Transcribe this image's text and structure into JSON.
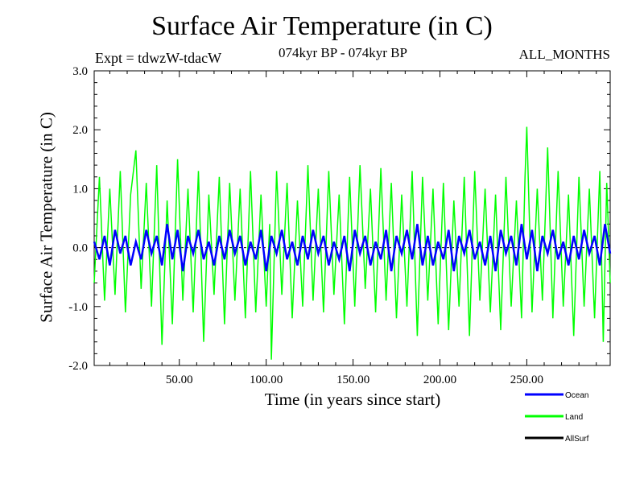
{
  "title": "Surface Air Temperature (in C)",
  "experiment": "Expt = tdwzW-tdacW",
  "period": "074kyr BP - 074kyr BP",
  "months": "ALL_MONTHS",
  "chart_data": {
    "type": "line",
    "xlabel": "Time (in years since start)",
    "ylabel": "Surface Air Temperature (in C)",
    "xlim": [
      1,
      298
    ],
    "ylim": [
      -2.0,
      3.0
    ],
    "x_ticks": [
      50,
      100,
      150,
      200,
      250
    ],
    "x_tick_labels": [
      "50.00",
      "100.00",
      "150.00",
      "200.00",
      "250.00"
    ],
    "y_ticks": [
      -2.0,
      -1.0,
      0.0,
      1.0,
      2.0,
      3.0
    ],
    "y_tick_labels": [
      "-2.0",
      "-1.0",
      "0.0",
      "1.0",
      "2.0",
      "3.0"
    ],
    "zero_line": true,
    "series": [
      {
        "name": "Land",
        "color": "#00ff00",
        "x": [
          1,
          4,
          7,
          10,
          13,
          16,
          19,
          22,
          25,
          28,
          31,
          34,
          37,
          40,
          43,
          46,
          49,
          52,
          55,
          58,
          61,
          64,
          67,
          70,
          73,
          76,
          79,
          82,
          85,
          88,
          91,
          94,
          97,
          100,
          102,
          103,
          106,
          109,
          112,
          115,
          118,
          121,
          124,
          127,
          130,
          133,
          136,
          139,
          142,
          145,
          148,
          151,
          154,
          157,
          160,
          163,
          166,
          169,
          172,
          175,
          178,
          181,
          184,
          187,
          190,
          193,
          196,
          199,
          202,
          205,
          208,
          211,
          214,
          217,
          220,
          223,
          226,
          229,
          232,
          235,
          238,
          241,
          244,
          247,
          249,
          250,
          253,
          256,
          259,
          262,
          265,
          268,
          271,
          274,
          277,
          280,
          283,
          286,
          289,
          292,
          294,
          296,
          298
        ],
        "values": [
          -0.6,
          1.2,
          -0.9,
          1.0,
          -0.8,
          1.3,
          -1.1,
          0.9,
          1.65,
          -0.7,
          1.1,
          -1.0,
          1.4,
          -1.65,
          0.8,
          -1.3,
          1.5,
          -0.9,
          1.0,
          -1.1,
          1.3,
          -1.6,
          0.9,
          -0.8,
          1.2,
          -1.3,
          1.1,
          -0.9,
          1.0,
          -1.2,
          1.3,
          -1.1,
          0.9,
          -1.0,
          0.4,
          -1.9,
          1.3,
          -0.8,
          1.1,
          -1.2,
          0.8,
          -1.0,
          1.4,
          -0.9,
          1.0,
          -1.1,
          1.3,
          -0.8,
          0.9,
          -1.3,
          1.2,
          -1.0,
          1.4,
          -0.7,
          1.0,
          -1.1,
          1.35,
          -0.9,
          1.1,
          -1.2,
          0.9,
          -1.0,
          1.3,
          -1.5,
          1.2,
          -0.9,
          1.0,
          -1.3,
          1.1,
          -1.4,
          0.8,
          -1.0,
          1.2,
          -1.5,
          1.3,
          -0.9,
          1.0,
          -1.1,
          0.9,
          -1.4,
          1.2,
          -1.0,
          0.8,
          -1.2,
          1.2,
          2.05,
          -1.1,
          1.0,
          -0.9,
          1.7,
          -1.2,
          1.3,
          -1.0,
          0.9,
          -1.5,
          1.2,
          -1.0,
          1.0,
          -1.2,
          1.3,
          -1.6,
          1.1,
          -0.6
        ]
      },
      {
        "name": "Ocean",
        "color": "#0000ff",
        "x": [
          1,
          4,
          7,
          10,
          13,
          16,
          19,
          22,
          25,
          28,
          31,
          34,
          37,
          40,
          43,
          46,
          49,
          52,
          55,
          58,
          61,
          64,
          67,
          70,
          73,
          76,
          79,
          82,
          85,
          88,
          91,
          94,
          97,
          100,
          103,
          106,
          109,
          112,
          115,
          118,
          121,
          124,
          127,
          130,
          133,
          136,
          139,
          142,
          145,
          148,
          151,
          154,
          157,
          160,
          163,
          166,
          169,
          172,
          175,
          178,
          181,
          184,
          187,
          190,
          193,
          196,
          199,
          202,
          205,
          208,
          211,
          214,
          217,
          220,
          223,
          226,
          229,
          232,
          235,
          238,
          241,
          244,
          247,
          250,
          253,
          256,
          259,
          262,
          265,
          268,
          271,
          274,
          277,
          280,
          283,
          286,
          289,
          292,
          295,
          298
        ],
        "values": [
          0.1,
          -0.2,
          0.2,
          -0.3,
          0.3,
          -0.1,
          0.2,
          -0.3,
          0.1,
          -0.2,
          0.3,
          -0.1,
          0.2,
          -0.3,
          0.4,
          -0.2,
          0.3,
          -0.4,
          0.2,
          -0.1,
          0.3,
          -0.2,
          0.1,
          -0.3,
          0.2,
          -0.2,
          0.3,
          -0.1,
          0.2,
          -0.3,
          0.1,
          -0.2,
          0.3,
          -0.4,
          0.2,
          -0.1,
          0.3,
          -0.2,
          0.1,
          -0.3,
          0.2,
          -0.2,
          0.3,
          -0.1,
          0.2,
          -0.3,
          0.1,
          -0.2,
          0.2,
          -0.4,
          0.3,
          -0.1,
          0.2,
          -0.3,
          0.1,
          -0.2,
          0.3,
          -0.4,
          0.2,
          -0.1,
          0.3,
          -0.2,
          0.4,
          -0.3,
          0.2,
          -0.3,
          0.1,
          -0.2,
          0.3,
          -0.4,
          0.2,
          -0.1,
          0.3,
          -0.2,
          0.1,
          -0.3,
          0.2,
          -0.4,
          0.3,
          -0.1,
          0.2,
          -0.3,
          0.4,
          -0.2,
          0.3,
          -0.4,
          0.2,
          -0.1,
          0.3,
          -0.2,
          0.1,
          -0.3,
          0.2,
          -0.2,
          0.3,
          -0.1,
          0.2,
          -0.3,
          0.4,
          -0.1
        ]
      },
      {
        "name": "AllSurf",
        "color": "#000000",
        "x": [],
        "values": []
      }
    ],
    "legend": [
      {
        "label": "Ocean",
        "color": "#0000ff"
      },
      {
        "label": "Land",
        "color": "#00ff00"
      },
      {
        "label": "AllSurf",
        "color": "#000000"
      }
    ],
    "legend_position": "bottom-right"
  }
}
